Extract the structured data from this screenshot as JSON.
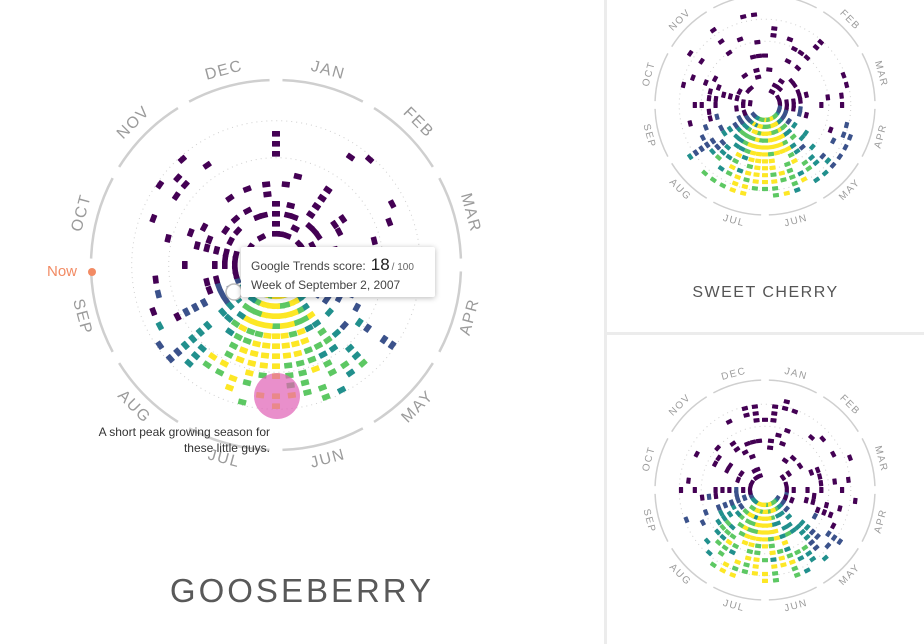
{
  "months": [
    "JAN",
    "FEB",
    "MAR",
    "APR",
    "MAY",
    "JUN",
    "JUL",
    "AUG",
    "SEP",
    "OCT",
    "NOV",
    "DEC"
  ],
  "main": {
    "title": "GOOSEBERRY",
    "now_label": "Now",
    "annotation": "A short peak growing season for these little guys.",
    "tooltip": {
      "score_label": "Google Trends score:",
      "score_value": "18",
      "score_max": "/ 100",
      "week_label": "Week of September 2, 2007"
    }
  },
  "top_right": {
    "title": "SWEET CHERRY"
  },
  "bottom_right": {
    "title": ""
  },
  "colors": {
    "now_marker": "#f28b64",
    "highlight": "#e05fb5",
    "ring": "#cfcfcf",
    "scale": [
      "#440154",
      "#3b528b",
      "#21908d",
      "#5dc863",
      "#fde725"
    ]
  },
  "chart_data": [
    {
      "type": "radial-heatmap",
      "name": "gooseberry",
      "title": "GOOSEBERRY",
      "value_range": [
        0,
        100
      ],
      "angular_axis": [
        "JAN",
        "FEB",
        "MAR",
        "APR",
        "MAY",
        "JUN",
        "JUL",
        "AUG",
        "SEP",
        "OCT",
        "NOV",
        "DEC"
      ],
      "radial_axis": "years (inner = earliest, outer = most recent)",
      "peak_months": [
        "JUN",
        "JUL"
      ],
      "highlighted_point": {
        "week": "September 2, 2007",
        "score": 18
      }
    },
    {
      "type": "radial-heatmap",
      "name": "sweet-cherry",
      "title": "SWEET CHERRY",
      "value_range": [
        0,
        100
      ],
      "angular_axis": [
        "JAN",
        "FEB",
        "MAR",
        "APR",
        "MAY",
        "JUN",
        "JUL",
        "AUG",
        "SEP",
        "OCT",
        "NOV",
        "DEC"
      ],
      "peak_months": [
        "JUN",
        "JUL"
      ]
    },
    {
      "type": "radial-heatmap",
      "name": "third-fruit",
      "value_range": [
        0,
        100
      ],
      "angular_axis": [
        "JAN",
        "FEB",
        "MAR",
        "APR",
        "MAY",
        "JUN",
        "JUL",
        "AUG",
        "SEP",
        "OCT",
        "NOV",
        "DEC"
      ],
      "peak_months": [
        "JUN",
        "JUL"
      ]
    }
  ]
}
